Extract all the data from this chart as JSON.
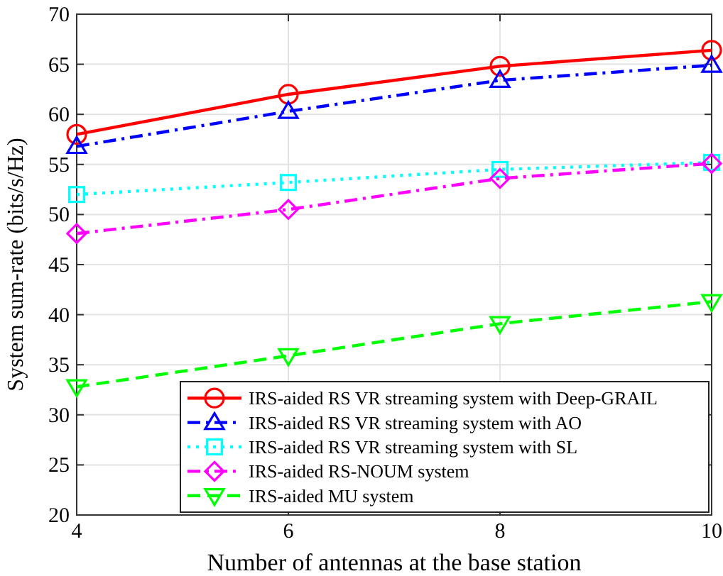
{
  "chart_data": {
    "type": "line",
    "xlabel": "Number of antennas at the base station",
    "ylabel": "System sum-rate (bits/s/Hz)",
    "x": [
      4,
      6,
      8,
      10
    ],
    "xlim": [
      4,
      10
    ],
    "xticks": [
      4,
      6,
      8,
      10
    ],
    "ylim": [
      20,
      70
    ],
    "yticks": [
      20,
      25,
      30,
      35,
      40,
      45,
      50,
      55,
      60,
      65,
      70
    ],
    "grid": true,
    "legend": "bottom right",
    "series": [
      {
        "name": "IRS-aided RS VR streaming system with Deep-GRAIL",
        "color": "#ff0000",
        "marker": "circle",
        "line_style": "solid",
        "values": [
          58,
          62,
          64.8,
          66.4
        ]
      },
      {
        "name": "IRS-aided RS VR streaming system with AO",
        "color": "#0000ff",
        "marker": "triangle",
        "line_style": "dashdot",
        "values": [
          56.8,
          60.3,
          63.4,
          64.9
        ]
      },
      {
        "name": "IRS-aided RS VR streaming system with SL",
        "color": "#00ffff",
        "marker": "square",
        "line_style": "dotted",
        "values": [
          52,
          53.2,
          54.5,
          55.2
        ]
      },
      {
        "name": "IRS-aided RS-NOUM system",
        "color": "#ff00ff",
        "marker": "diamond",
        "line_style": "dashdot",
        "values": [
          48.1,
          50.5,
          53.6,
          55.1
        ]
      },
      {
        "name": "IRS-aided MU system",
        "color": "#00ff00",
        "marker": "triangle-down",
        "line_style": "dashed",
        "values": [
          32.8,
          35.9,
          39.1,
          41.3
        ]
      }
    ]
  }
}
